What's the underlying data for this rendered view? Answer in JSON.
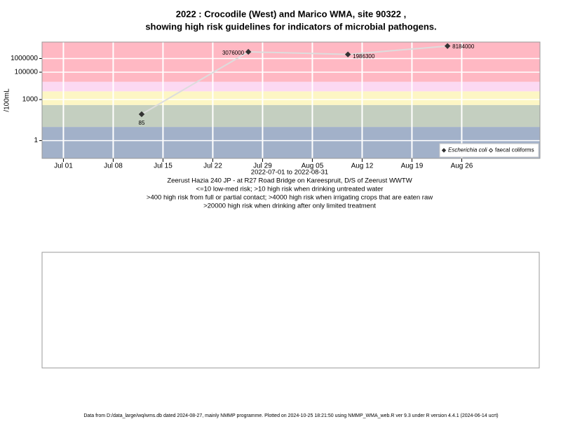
{
  "chart_data": {
    "type": "scatter-line",
    "title": "2022 : Crocodile (West) and Marico WMA, site 90322 ,",
    "subtitle": "showing high risk guidelines for indicators of microbial pathogens.",
    "ylabel": "/100mL",
    "xlabel": "2022-07-01 to 2022-08-31",
    "notes": [
      "Zeerust Hazia 240 JP - at R27 Road Bridge on Kareespruit, D/S of Zeerust WWTW",
      "<=10 low-med risk; >10 high risk when drinking untreated water",
      ">400 high risk from full or partial contact; >4000 high risk when irrigating crops that are eaten raw",
      ">20000 high risk when drinking after only limited treatment"
    ],
    "footer": "Data from D:/data_large/wq/wms.db dated 2024-08-27, mainly NMMP programme. Plotted on 2024-10-25 18:21:50 using NMMP_WMA_web.R ver 9.3 under R version 4.4.1 (2024-06-14 ucrt)",
    "x": [
      "2022-07-12",
      "2022-07-27",
      "2022-08-10",
      "2022-08-24"
    ],
    "series": [
      {
        "name": "Escherichia coli",
        "color": "#333333",
        "line_color": "#dddddd",
        "marker": "filled-diamond",
        "values": [
          85,
          3076000,
          1986300,
          8184000
        ]
      },
      {
        "name": "faecal coliforms",
        "color": "#333333",
        "marker": "open-diamond",
        "values": [
          null,
          null,
          null,
          null
        ]
      }
    ],
    "xlim": [
      "2022-06-28",
      "2022-09-06"
    ],
    "xticks": [
      {
        "value": "2022-07-01",
        "label": "Jul 01"
      },
      {
        "value": "2022-07-08",
        "label": "Jul 08"
      },
      {
        "value": "2022-07-15",
        "label": "Jul 15"
      },
      {
        "value": "2022-07-22",
        "label": "Jul 22"
      },
      {
        "value": "2022-07-29",
        "label": "Jul 29"
      },
      {
        "value": "2022-08-05",
        "label": "Aug 05"
      },
      {
        "value": "2022-08-12",
        "label": "Aug 12"
      },
      {
        "value": "2022-08-19",
        "label": "Aug 19"
      },
      {
        "value": "2022-08-26",
        "label": "Aug 26"
      }
    ],
    "ylim": [
      0.05,
      16000000
    ],
    "yticks": [
      1,
      1000,
      100000,
      1000000
    ],
    "log_y": true,
    "grid": true,
    "band_thresholds": [
      10,
      400,
      4000,
      20000
    ],
    "band_colors": [
      "#a2b1c9",
      "#c4cfc0",
      "#fdf6c4",
      "#fcd9f2",
      "#ffb8c3"
    ],
    "legend": "bottom-right"
  }
}
